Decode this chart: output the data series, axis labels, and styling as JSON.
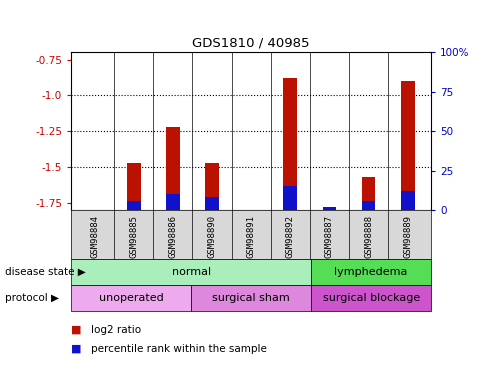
{
  "title": "GDS1810 / 40985",
  "samples": [
    "GSM98884",
    "GSM98885",
    "GSM98886",
    "GSM98890",
    "GSM98891",
    "GSM98892",
    "GSM98887",
    "GSM98888",
    "GSM98889"
  ],
  "log2_ratios": [
    null,
    -1.47,
    -1.22,
    -1.47,
    null,
    -0.88,
    null,
    -1.57,
    -0.9
  ],
  "percentile_ranks_pct": [
    null,
    6,
    10,
    8,
    null,
    15,
    2,
    6,
    12
  ],
  "ylim_left": [
    -1.8,
    -0.7
  ],
  "ylim_right": [
    0,
    100
  ],
  "yticks_left": [
    -1.75,
    -1.5,
    -1.25,
    -1.0,
    -0.75
  ],
  "yticks_right": [
    0,
    25,
    50,
    75,
    100
  ],
  "ylabel_left_color": "#cc0000",
  "ylabel_right_color": "#0000cc",
  "bar_color_red": "#bb1100",
  "bar_color_blue": "#1111cc",
  "gridline_color": "#000000",
  "hgrid_ticks": [
    -1.0,
    -1.25,
    -1.5
  ],
  "disease_state_groups": [
    {
      "label": "normal",
      "start": 0,
      "end": 6,
      "color": "#aaeebb"
    },
    {
      "label": "lymphedema",
      "start": 6,
      "end": 9,
      "color": "#55dd55"
    }
  ],
  "protocol_groups": [
    {
      "label": "unoperated",
      "start": 0,
      "end": 3,
      "color": "#eeaaee"
    },
    {
      "label": "surgical sham",
      "start": 3,
      "end": 6,
      "color": "#dd88dd"
    },
    {
      "label": "surgical blockage",
      "start": 6,
      "end": 9,
      "color": "#cc55cc"
    }
  ],
  "legend_items": [
    {
      "label": "log2 ratio",
      "color": "#bb1100"
    },
    {
      "label": "percentile rank within the sample",
      "color": "#1111cc"
    }
  ],
  "bar_width": 0.35
}
